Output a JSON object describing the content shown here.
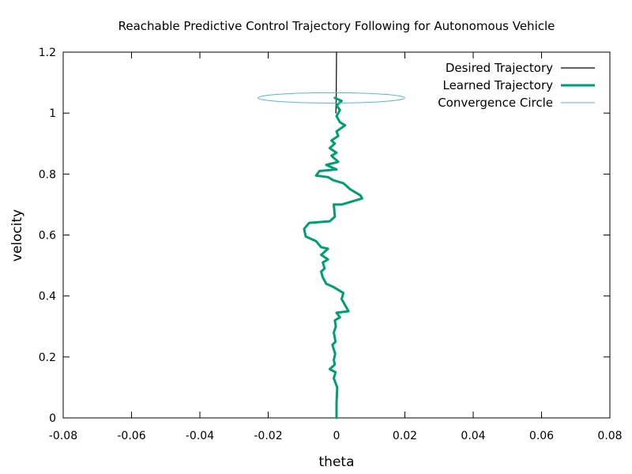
{
  "chart_data": {
    "type": "line",
    "title": "Reachable Predictive Control Trajectory Following for Autonomous Vehicle",
    "xlabel": "theta",
    "ylabel": "velocity",
    "xlim": [
      -0.08,
      0.08
    ],
    "ylim": [
      0,
      1.2
    ],
    "x_ticks": [
      "-0.08",
      "-0.06",
      "-0.04",
      "-0.02",
      "0",
      "0.02",
      "0.04",
      "0.06",
      "0.08"
    ],
    "y_ticks": [
      "0",
      "0.2",
      "0.4",
      "0.6",
      "0.8",
      "1",
      "1.2"
    ],
    "grid": false,
    "legend_position": "top-right",
    "series": [
      {
        "name": "Desired Trajectory",
        "color": "#000000",
        "style": "thin-line",
        "points": [
          [
            -0.0002,
            1.0
          ],
          [
            -0.0001,
            1.05
          ],
          [
            0.0,
            1.2
          ]
        ]
      },
      {
        "name": "Learned Trajectory",
        "color": "#009e73",
        "style": "thick-line",
        "points": [
          [
            0.0,
            0.0
          ],
          [
            0.0,
            0.05
          ],
          [
            0.0002,
            0.1
          ],
          [
            -0.0008,
            0.13
          ],
          [
            -0.0003,
            0.15
          ],
          [
            -0.002,
            0.16
          ],
          [
            -0.0005,
            0.175
          ],
          [
            -0.0008,
            0.19
          ],
          [
            -0.0004,
            0.21
          ],
          [
            -0.0012,
            0.24
          ],
          [
            -0.0003,
            0.25
          ],
          [
            -0.0008,
            0.28
          ],
          [
            -0.0002,
            0.3
          ],
          [
            -0.0005,
            0.32
          ],
          [
            0.001,
            0.33
          ],
          [
            0.0,
            0.345
          ],
          [
            0.0035,
            0.35
          ],
          [
            0.0025,
            0.37
          ],
          [
            0.0015,
            0.39
          ],
          [
            0.002,
            0.41
          ],
          [
            -0.001,
            0.43
          ],
          [
            -0.003,
            0.44
          ],
          [
            -0.004,
            0.46
          ],
          [
            -0.0045,
            0.48
          ],
          [
            -0.0035,
            0.49
          ],
          [
            -0.004,
            0.51
          ],
          [
            -0.0025,
            0.52
          ],
          [
            -0.0045,
            0.535
          ],
          [
            -0.0025,
            0.555
          ],
          [
            -0.0045,
            0.56
          ],
          [
            -0.006,
            0.58
          ],
          [
            -0.009,
            0.595
          ],
          [
            -0.0095,
            0.62
          ],
          [
            -0.008,
            0.64
          ],
          [
            -0.002,
            0.645
          ],
          [
            -0.0005,
            0.66
          ],
          [
            -0.0008,
            0.7
          ],
          [
            0.0015,
            0.7
          ],
          [
            0.0075,
            0.72
          ],
          [
            0.007,
            0.73
          ],
          [
            0.004,
            0.75
          ],
          [
            0.002,
            0.77
          ],
          [
            -0.001,
            0.78
          ],
          [
            -0.0025,
            0.79
          ],
          [
            -0.006,
            0.795
          ],
          [
            -0.005,
            0.81
          ],
          [
            0.0,
            0.815
          ],
          [
            -0.003,
            0.83
          ],
          [
            0.0005,
            0.84
          ],
          [
            -0.0015,
            0.86
          ],
          [
            0.0,
            0.87
          ],
          [
            -0.002,
            0.885
          ],
          [
            -0.0005,
            0.9
          ],
          [
            -0.0015,
            0.91
          ],
          [
            0.0005,
            0.925
          ],
          [
            0.0,
            0.94
          ],
          [
            0.0025,
            0.96
          ],
          [
            0.001,
            0.97
          ],
          [
            0.0,
            0.99
          ],
          [
            0.001,
            1.01
          ],
          [
            0.0,
            1.025
          ],
          [
            0.0015,
            1.04
          ],
          [
            -0.0005,
            1.05
          ]
        ]
      },
      {
        "name": "Convergence Circle",
        "color": "#56b4e9",
        "style": "ellipse",
        "center": [
          -0.0015,
          1.05
        ],
        "radius_x": 0.0215,
        "radius_y": 0.017
      }
    ]
  }
}
